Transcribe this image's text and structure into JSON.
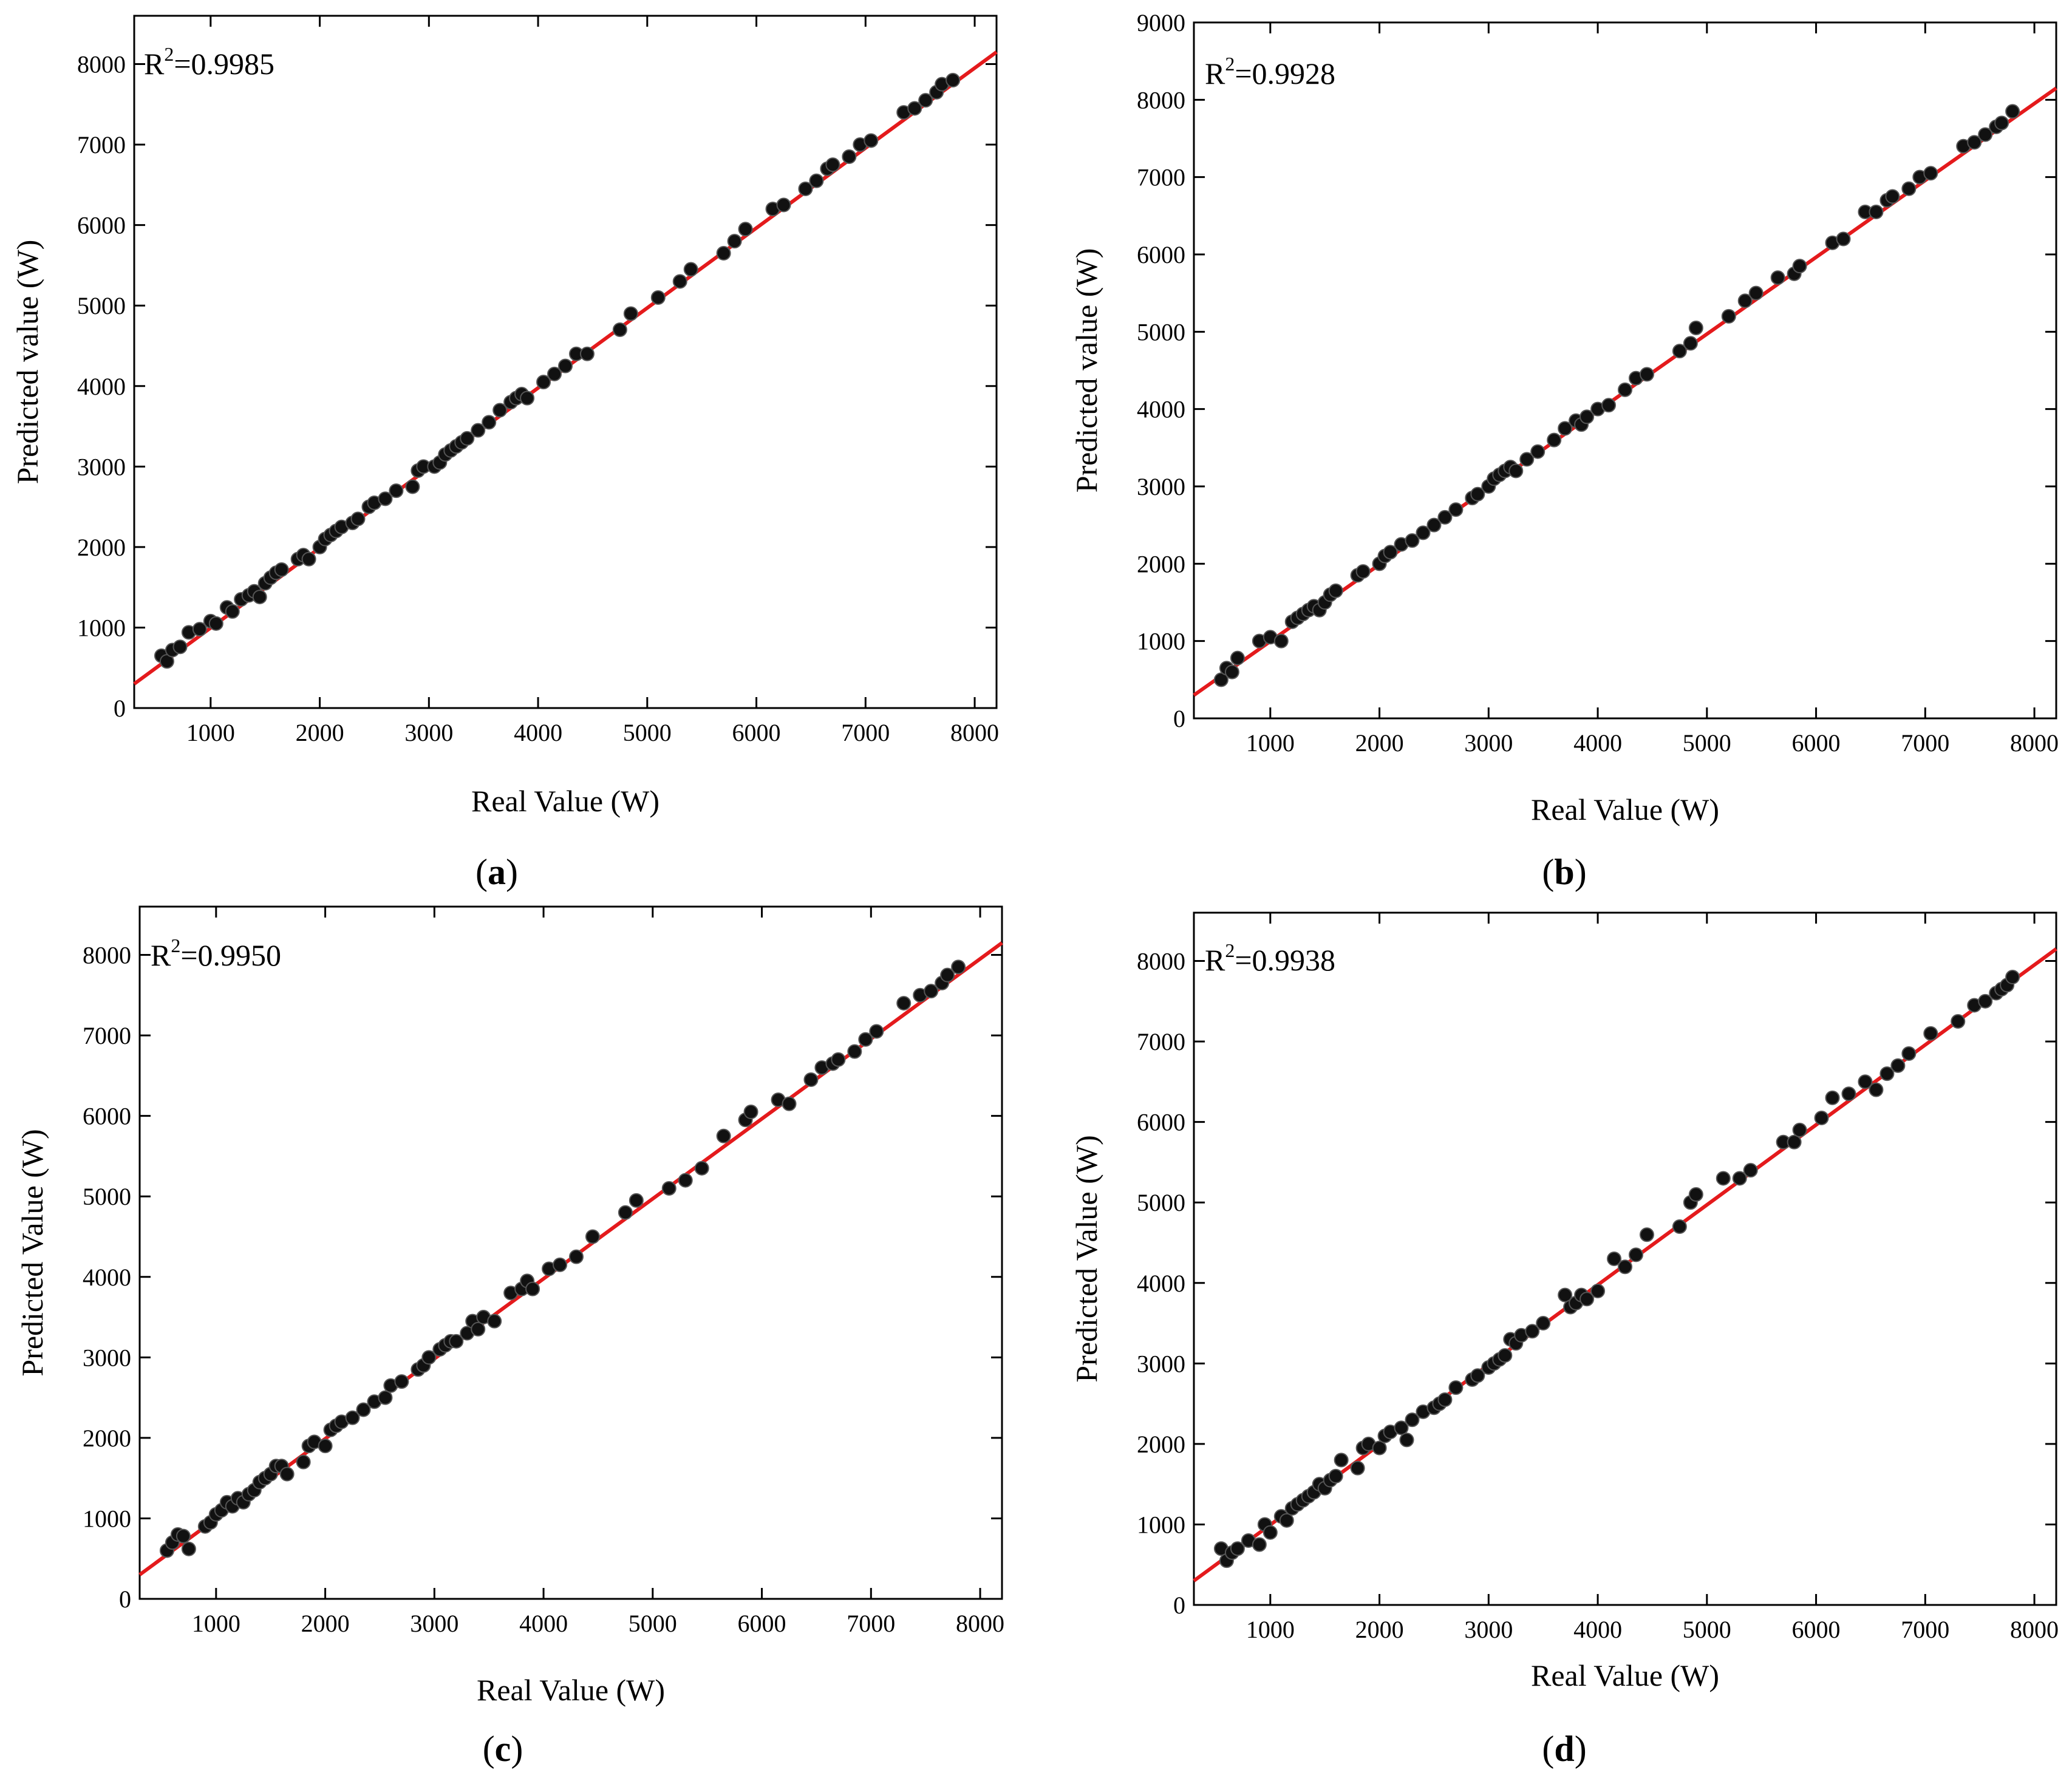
{
  "colors": {
    "fit_line": "#e41a1c",
    "points": "#111111",
    "axes": "#000000"
  },
  "chart_data": [
    {
      "type": "scatter",
      "panel": "(a)",
      "caption_letter": "a",
      "r2_prefix": "R",
      "r2_exp": "2",
      "r2_value": "=0.9985",
      "xlabel": "Real Value (W)",
      "ylabel": "Predicted value (W)",
      "xlim": [
        300,
        8200
      ],
      "ylim": [
        0,
        8600
      ],
      "xticks": [
        1000,
        2000,
        3000,
        4000,
        5000,
        6000,
        7000,
        8000
      ],
      "yticks": [
        0,
        1000,
        2000,
        3000,
        4000,
        5000,
        6000,
        7000,
        8000
      ],
      "fit_line": {
        "x": [
          300,
          8200
        ],
        "y": [
          300,
          8150
        ]
      },
      "points": {
        "x": [
          550,
          600,
          650,
          720,
          800,
          900,
          1000,
          1050,
          1150,
          1200,
          1280,
          1350,
          1400,
          1450,
          1500,
          1550,
          1600,
          1650,
          1800,
          1850,
          1900,
          2000,
          2050,
          2100,
          2150,
          2200,
          2300,
          2350,
          2450,
          2500,
          2600,
          2700,
          2850,
          2900,
          2950,
          3050,
          3100,
          3150,
          3200,
          3250,
          3300,
          3350,
          3450,
          3550,
          3650,
          3750,
          3800,
          3850,
          3900,
          4050,
          4150,
          4250,
          4350,
          4450,
          4750,
          4850,
          5100,
          5300,
          5400,
          5700,
          5800,
          5900,
          6150,
          6250,
          6450,
          6550,
          6650,
          6700,
          6850,
          6950,
          7050,
          7350,
          7450,
          7550,
          7650,
          7700,
          7800
        ],
        "y": [
          650,
          580,
          720,
          760,
          940,
          980,
          1080,
          1050,
          1250,
          1200,
          1350,
          1400,
          1450,
          1380,
          1550,
          1620,
          1680,
          1720,
          1850,
          1900,
          1850,
          2000,
          2100,
          2150,
          2200,
          2250,
          2300,
          2350,
          2500,
          2550,
          2600,
          2700,
          2750,
          2950,
          3000,
          3000,
          3050,
          3150,
          3200,
          3250,
          3300,
          3350,
          3450,
          3550,
          3700,
          3800,
          3850,
          3900,
          3850,
          4050,
          4150,
          4250,
          4400,
          4400,
          4700,
          4900,
          5100,
          5300,
          5450,
          5650,
          5800,
          5950,
          6200,
          6250,
          6450,
          6550,
          6700,
          6750,
          6850,
          7000,
          7050,
          7400,
          7450,
          7550,
          7650,
          7750,
          7800
        ]
      }
    },
    {
      "type": "scatter",
      "panel": "(b)",
      "caption_letter": "b",
      "r2_prefix": "R",
      "r2_exp": "2",
      "r2_value": "=0.9928",
      "xlabel": "Real Value (W)",
      "ylabel": "Predicted value (W)",
      "xlim": [
        300,
        8200
      ],
      "ylim": [
        0,
        9000
      ],
      "xticks": [
        1000,
        2000,
        3000,
        4000,
        5000,
        6000,
        7000,
        8000
      ],
      "yticks": [
        0,
        1000,
        2000,
        3000,
        4000,
        5000,
        6000,
        7000,
        8000,
        9000
      ],
      "fit_line": {
        "x": [
          300,
          8200
        ],
        "y": [
          300,
          8150
        ]
      },
      "points": {
        "x": [
          550,
          600,
          650,
          700,
          900,
          1000,
          1100,
          1200,
          1250,
          1300,
          1350,
          1400,
          1450,
          1500,
          1550,
          1600,
          1800,
          1850,
          2000,
          2050,
          2100,
          2200,
          2300,
          2400,
          2500,
          2600,
          2700,
          2850,
          2900,
          3000,
          3050,
          3100,
          3150,
          3200,
          3250,
          3350,
          3450,
          3600,
          3700,
          3800,
          3850,
          3900,
          4000,
          4100,
          4250,
          4350,
          4450,
          4750,
          4850,
          4900,
          5200,
          5350,
          5450,
          5650,
          5800,
          5850,
          6150,
          6250,
          6450,
          6550,
          6650,
          6700,
          6850,
          6950,
          7050,
          7350,
          7450,
          7550,
          7650,
          7700,
          7800
        ],
        "y": [
          500,
          650,
          600,
          780,
          1000,
          1050,
          1000,
          1250,
          1300,
          1350,
          1400,
          1450,
          1400,
          1500,
          1600,
          1650,
          1850,
          1900,
          2000,
          2100,
          2150,
          2250,
          2300,
          2400,
          2500,
          2600,
          2700,
          2850,
          2900,
          3000,
          3100,
          3150,
          3200,
          3250,
          3200,
          3350,
          3450,
          3600,
          3750,
          3850,
          3800,
          3900,
          4000,
          4050,
          4250,
          4400,
          4450,
          4750,
          4850,
          5050,
          5200,
          5400,
          5500,
          5700,
          5750,
          5850,
          6150,
          6200,
          6550,
          6550,
          6700,
          6750,
          6850,
          7000,
          7050,
          7400,
          7450,
          7550,
          7650,
          7700,
          7850
        ]
      }
    },
    {
      "type": "scatter",
      "panel": "(c)",
      "caption_letter": "c",
      "r2_prefix": "R",
      "r2_exp": "2",
      "r2_value": "=0.9950",
      "xlabel": "Real Value (W)",
      "ylabel": "Predicted Value (W)",
      "xlim": [
        300,
        8200
      ],
      "ylim": [
        0,
        8600
      ],
      "xticks": [
        1000,
        2000,
        3000,
        4000,
        5000,
        6000,
        7000,
        8000
      ],
      "yticks": [
        0,
        1000,
        2000,
        3000,
        4000,
        5000,
        6000,
        7000,
        8000
      ],
      "fit_line": {
        "x": [
          300,
          8200
        ],
        "y": [
          300,
          8150
        ]
      },
      "points": {
        "x": [
          550,
          600,
          650,
          700,
          750,
          900,
          950,
          1000,
          1050,
          1100,
          1150,
          1200,
          1250,
          1300,
          1350,
          1400,
          1450,
          1500,
          1550,
          1600,
          1650,
          1800,
          1850,
          1900,
          2000,
          2050,
          2100,
          2150,
          2250,
          2350,
          2450,
          2550,
          2600,
          2700,
          2850,
          2900,
          2950,
          3050,
          3100,
          3150,
          3200,
          3300,
          3350,
          3400,
          3450,
          3550,
          3700,
          3800,
          3850,
          3900,
          4050,
          4150,
          4300,
          4450,
          4750,
          4850,
          5150,
          5300,
          5450,
          5650,
          5850,
          5900,
          6150,
          6250,
          6450,
          6550,
          6650,
          6700,
          6850,
          6950,
          7050,
          7300,
          7450,
          7550,
          7650,
          7700,
          7800
        ],
        "y": [
          600,
          700,
          800,
          780,
          620,
          900,
          950,
          1050,
          1100,
          1200,
          1150,
          1250,
          1200,
          1300,
          1350,
          1450,
          1500,
          1550,
          1650,
          1650,
          1550,
          1700,
          1900,
          1950,
          1900,
          2100,
          2150,
          2200,
          2250,
          2350,
          2450,
          2500,
          2650,
          2700,
          2850,
          2900,
          3000,
          3100,
          3150,
          3200,
          3200,
          3300,
          3450,
          3350,
          3500,
          3450,
          3800,
          3850,
          3950,
          3850,
          4100,
          4150,
          4250,
          4500,
          4800,
          4950,
          5100,
          5200,
          5350,
          5750,
          5950,
          6050,
          6200,
          6150,
          6450,
          6600,
          6650,
          6700,
          6800,
          6950,
          7050,
          7400,
          7500,
          7550,
          7650,
          7750,
          7850
        ]
      }
    },
    {
      "type": "scatter",
      "panel": "(d)",
      "caption_letter": "d",
      "r2_prefix": "R",
      "r2_exp": "2",
      "r2_value": "=0.9938",
      "xlabel": "Real Value (W)",
      "ylabel": "Predicted Value (W)",
      "xlim": [
        300,
        8200
      ],
      "ylim": [
        0,
        8600
      ],
      "xticks": [
        1000,
        2000,
        3000,
        4000,
        5000,
        6000,
        7000,
        8000
      ],
      "yticks": [
        0,
        1000,
        2000,
        3000,
        4000,
        5000,
        6000,
        7000,
        8000
      ],
      "fit_line": {
        "x": [
          300,
          8200
        ],
        "y": [
          300,
          8150
        ]
      },
      "points": {
        "x": [
          550,
          600,
          650,
          700,
          800,
          900,
          950,
          1000,
          1100,
          1150,
          1200,
          1250,
          1300,
          1350,
          1400,
          1450,
          1500,
          1550,
          1600,
          1650,
          1800,
          1850,
          1900,
          2000,
          2050,
          2100,
          2200,
          2250,
          2300,
          2400,
          2500,
          2550,
          2600,
          2700,
          2850,
          2900,
          3000,
          3050,
          3100,
          3150,
          3200,
          3250,
          3300,
          3400,
          3500,
          3700,
          3750,
          3800,
          3850,
          3900,
          4000,
          4150,
          4250,
          4350,
          4450,
          4750,
          4850,
          4900,
          5150,
          5300,
          5400,
          5700,
          5800,
          5850,
          6050,
          6150,
          6300,
          6450,
          6550,
          6650,
          6750,
          6850,
          7050,
          7300,
          7450,
          7550,
          7650,
          7700,
          7750,
          7800
        ],
        "y": [
          700,
          550,
          650,
          700,
          800,
          750,
          1000,
          900,
          1100,
          1050,
          1200,
          1250,
          1300,
          1350,
          1400,
          1500,
          1450,
          1550,
          1600,
          1800,
          1700,
          1950,
          2000,
          1950,
          2100,
          2150,
          2200,
          2050,
          2300,
          2400,
          2450,
          2500,
          2550,
          2700,
          2800,
          2850,
          2950,
          3000,
          3050,
          3100,
          3300,
          3250,
          3350,
          3400,
          3500,
          3850,
          3700,
          3750,
          3850,
          3800,
          3900,
          4300,
          4200,
          4350,
          4600,
          4700,
          5000,
          5100,
          5300,
          5300,
          5400,
          5750,
          5750,
          5900,
          6050,
          6300,
          6350,
          6500,
          6400,
          6600,
          6700,
          6850,
          7100,
          7250,
          7450,
          7500,
          7600,
          7650,
          7700,
          7800
        ]
      }
    }
  ]
}
